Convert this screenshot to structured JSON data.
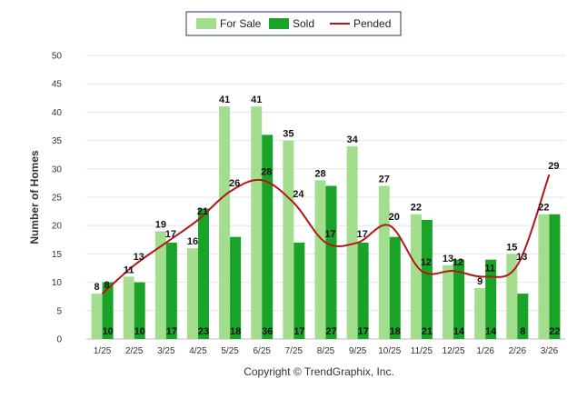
{
  "chart_data": {
    "type": "bar",
    "title": "",
    "xlabel": "",
    "ylabel": "Number of Homes",
    "ylim": [
      0,
      50
    ],
    "yticks": [
      0,
      5,
      10,
      15,
      20,
      25,
      30,
      35,
      40,
      45,
      50
    ],
    "categories": [
      "1/25",
      "2/25",
      "3/25",
      "4/25",
      "5/25",
      "6/25",
      "7/25",
      "8/25",
      "9/25",
      "10/25",
      "11/25",
      "12/25",
      "1/26",
      "2/26",
      "3/26"
    ],
    "series": [
      {
        "name": "For Sale",
        "kind": "bar",
        "color": "#a3de8e",
        "values": [
          8,
          11,
          19,
          16,
          41,
          41,
          35,
          28,
          34,
          27,
          22,
          13,
          9,
          15,
          22
        ]
      },
      {
        "name": "Sold",
        "kind": "bar",
        "color": "#1aa329",
        "values": [
          10,
          10,
          17,
          23,
          18,
          36,
          17,
          27,
          17,
          18,
          21,
          14,
          14,
          8,
          22
        ]
      },
      {
        "name": "Pended",
        "kind": "line",
        "color": "#b31818",
        "values": [
          8,
          13,
          17,
          21,
          26,
          28,
          24,
          17,
          17,
          20,
          12,
          12,
          11,
          13,
          29
        ]
      }
    ],
    "grid": true,
    "legend_position": "top-center",
    "credit": "Copyright © TrendGraphix, Inc."
  }
}
